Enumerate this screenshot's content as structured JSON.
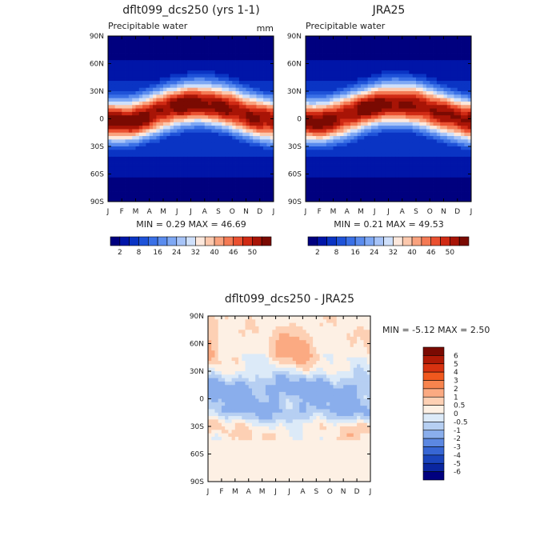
{
  "chart_data": [
    {
      "type": "heatmap",
      "title": "dflt099_dcs250 (yrs 1-1)",
      "subtitle": "Precipitable water",
      "units": "mm",
      "x": [
        "J",
        "F",
        "M",
        "A",
        "M",
        "J",
        "J",
        "A",
        "S",
        "O",
        "N",
        "D",
        "J"
      ],
      "y": [
        "90N",
        "60N",
        "30N",
        "0",
        "30S",
        "60S",
        "90S"
      ],
      "stats": "MIN =    0.29 MAX =   46.69",
      "colorbar": {
        "labels": [
          "2",
          "8",
          "16",
          "24",
          "32",
          "40",
          "46",
          "50"
        ],
        "colors": [
          "#00007f",
          "#0015a8",
          "#0a34c4",
          "#1e52d8",
          "#3a70e6",
          "#5a8cee",
          "#7ea8f4",
          "#a7c4f8",
          "#cfe0fb",
          "#fde8dc",
          "#fcc8ad",
          "#f9a27e",
          "#f47a54",
          "#ea5030",
          "#d02a14",
          "#a81406",
          "#7a0a02"
        ]
      }
    },
    {
      "type": "heatmap",
      "title": "JRA25",
      "subtitle": "Precipitable water",
      "x": [
        "J",
        "F",
        "M",
        "A",
        "M",
        "J",
        "J",
        "A",
        "S",
        "O",
        "N",
        "D",
        "J"
      ],
      "y": [
        "90N",
        "60N",
        "30N",
        "0",
        "30S",
        "60S",
        "90S"
      ],
      "stats": "MIN =    0.21 MAX =   49.53",
      "colorbar": {
        "labels": [
          "2",
          "8",
          "16",
          "24",
          "32",
          "40",
          "46",
          "50"
        ],
        "colors": [
          "#00007f",
          "#0015a8",
          "#0a34c4",
          "#1e52d8",
          "#3a70e6",
          "#5a8cee",
          "#7ea8f4",
          "#a7c4f8",
          "#cfe0fb",
          "#fde8dc",
          "#fcc8ad",
          "#f9a27e",
          "#f47a54",
          "#ea5030",
          "#d02a14",
          "#a81406",
          "#7a0a02"
        ]
      }
    },
    {
      "type": "heatmap",
      "title": "dflt099_dcs250 - JRA25",
      "x": [
        "J",
        "F",
        "M",
        "A",
        "M",
        "J",
        "J",
        "A",
        "S",
        "O",
        "N",
        "D",
        "J"
      ],
      "y": [
        "90N",
        "60N",
        "30N",
        "0",
        "30S",
        "60S",
        "90S"
      ],
      "stats": "MIN =  -5.12 MAX =    2.50",
      "colorbar": {
        "labels": [
          "6",
          "5",
          "4",
          "3",
          "2",
          "1",
          "0.5",
          "0",
          "-0.5",
          "-1",
          "-2",
          "-3",
          "-4",
          "-5",
          "-6"
        ],
        "colors": [
          "#7a0a02",
          "#b01a06",
          "#d83210",
          "#f0581e",
          "#f7844e",
          "#fbaa82",
          "#fdd0b4",
          "#fdf0e4",
          "#dceaf8",
          "#b6cff2",
          "#8aaeec",
          "#5c88e2",
          "#3766d4",
          "#1a44bc",
          "#0a26a0",
          "#00007f"
        ]
      }
    }
  ]
}
